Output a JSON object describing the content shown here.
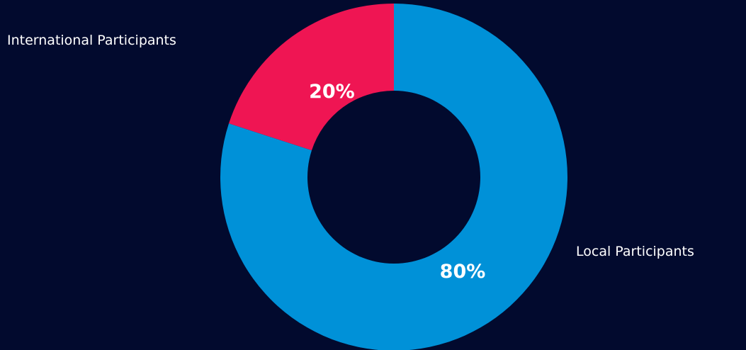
{
  "chart_data": {
    "type": "pie",
    "variant": "donut",
    "categories": [
      "International Participants",
      "Local Participants"
    ],
    "values": [
      20,
      80
    ],
    "data_labels": [
      "20%",
      "80%"
    ],
    "colors": [
      "#ef1553",
      "#0091d8"
    ],
    "background": "#020a2e",
    "label_color": "#ffffff",
    "legend": "labels placed beside slices"
  }
}
